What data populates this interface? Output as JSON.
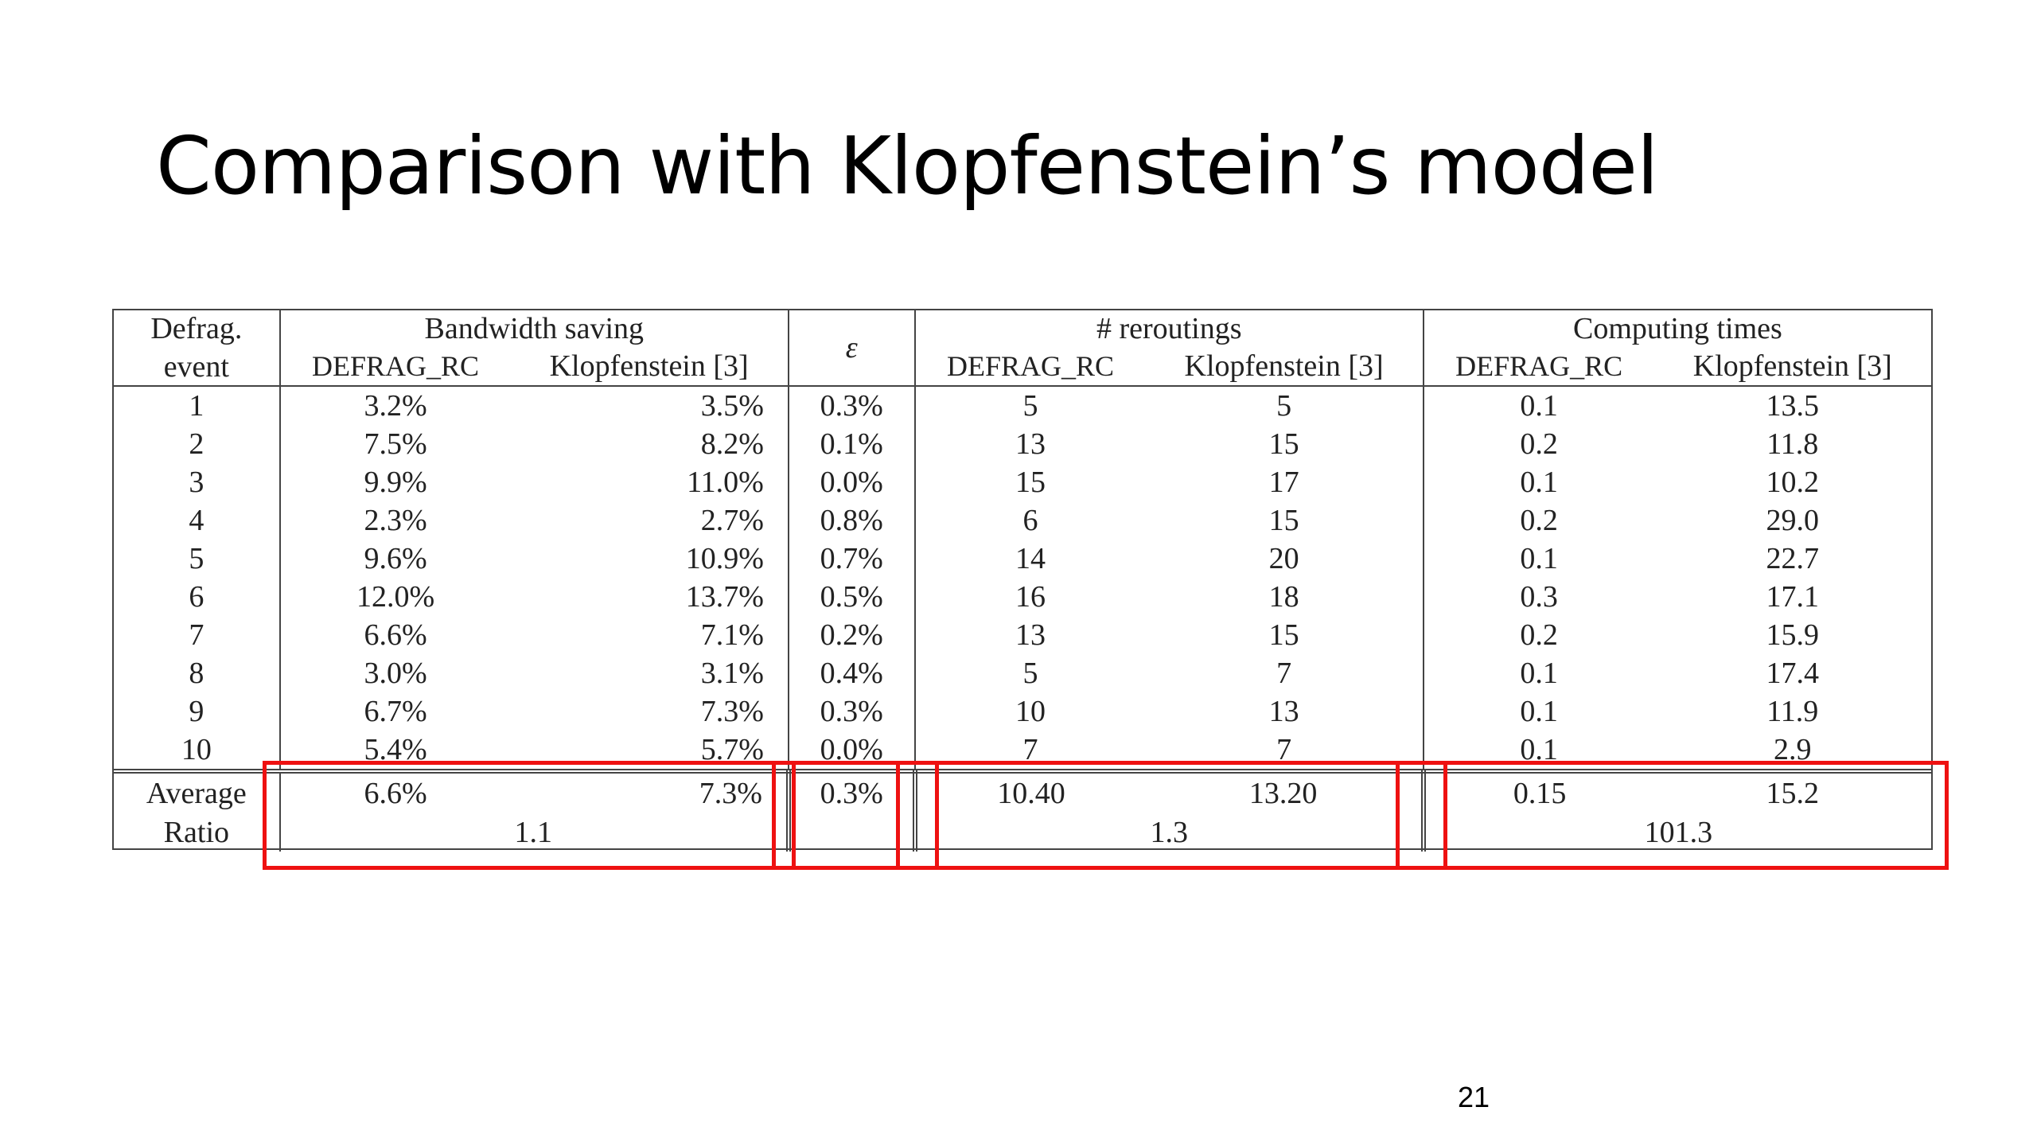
{
  "slide": {
    "title": "Comparison with Klopfenstein’s model",
    "page_number": "21"
  },
  "table": {
    "headers": {
      "event_line1": "Defrag.",
      "event_line2": "event",
      "bandwidth": "Bandwidth saving",
      "epsilon": "ε",
      "reroutings": "# reroutings",
      "computing": "Computing times",
      "defrag_rc": "DEFRAG_RC",
      "klopfenstein": "Klopfenstein [3]"
    },
    "rows": [
      {
        "event": "1",
        "bw_defrag": "3.2%",
        "bw_klop": "3.5%",
        "eps": "0.3%",
        "rr_defrag": "5",
        "rr_klop": "5",
        "ct_defrag": "0.1",
        "ct_klop": "13.5"
      },
      {
        "event": "2",
        "bw_defrag": "7.5%",
        "bw_klop": "8.2%",
        "eps": "0.1%",
        "rr_defrag": "13",
        "rr_klop": "15",
        "ct_defrag": "0.2",
        "ct_klop": "11.8"
      },
      {
        "event": "3",
        "bw_defrag": "9.9%",
        "bw_klop": "11.0%",
        "eps": "0.0%",
        "rr_defrag": "15",
        "rr_klop": "17",
        "ct_defrag": "0.1",
        "ct_klop": "10.2"
      },
      {
        "event": "4",
        "bw_defrag": "2.3%",
        "bw_klop": "2.7%",
        "eps": "0.8%",
        "rr_defrag": "6",
        "rr_klop": "15",
        "ct_defrag": "0.2",
        "ct_klop": "29.0"
      },
      {
        "event": "5",
        "bw_defrag": "9.6%",
        "bw_klop": "10.9%",
        "eps": "0.7%",
        "rr_defrag": "14",
        "rr_klop": "20",
        "ct_defrag": "0.1",
        "ct_klop": "22.7"
      },
      {
        "event": "6",
        "bw_defrag": "12.0%",
        "bw_klop": "13.7%",
        "eps": "0.5%",
        "rr_defrag": "16",
        "rr_klop": "18",
        "ct_defrag": "0.3",
        "ct_klop": "17.1"
      },
      {
        "event": "7",
        "bw_defrag": "6.6%",
        "bw_klop": "7.1%",
        "eps": "0.2%",
        "rr_defrag": "13",
        "rr_klop": "15",
        "ct_defrag": "0.2",
        "ct_klop": "15.9"
      },
      {
        "event": "8",
        "bw_defrag": "3.0%",
        "bw_klop": "3.1%",
        "eps": "0.4%",
        "rr_defrag": "5",
        "rr_klop": "7",
        "ct_defrag": "0.1",
        "ct_klop": "17.4"
      },
      {
        "event": "9",
        "bw_defrag": "6.7%",
        "bw_klop": "7.3%",
        "eps": "0.3%",
        "rr_defrag": "10",
        "rr_klop": "13",
        "ct_defrag": "0.1",
        "ct_klop": "11.9"
      },
      {
        "event": "10",
        "bw_defrag": "5.4%",
        "bw_klop": "5.7%",
        "eps": "0.0%",
        "rr_defrag": "7",
        "rr_klop": "7",
        "ct_defrag": "0.1",
        "ct_klop": "2.9"
      }
    ],
    "average": {
      "label": "Average",
      "bw_defrag": "6.6%",
      "bw_klop": "7.3%",
      "eps": "0.3%",
      "rr_defrag": "10.40",
      "rr_klop": "13.20",
      "ct_defrag": "0.15",
      "ct_klop": "15.2"
    },
    "ratio": {
      "label": "Ratio",
      "bandwidth": "1.1",
      "reroutings": "1.3",
      "computing": "101.3"
    }
  },
  "highlight_color": "#ee1111"
}
